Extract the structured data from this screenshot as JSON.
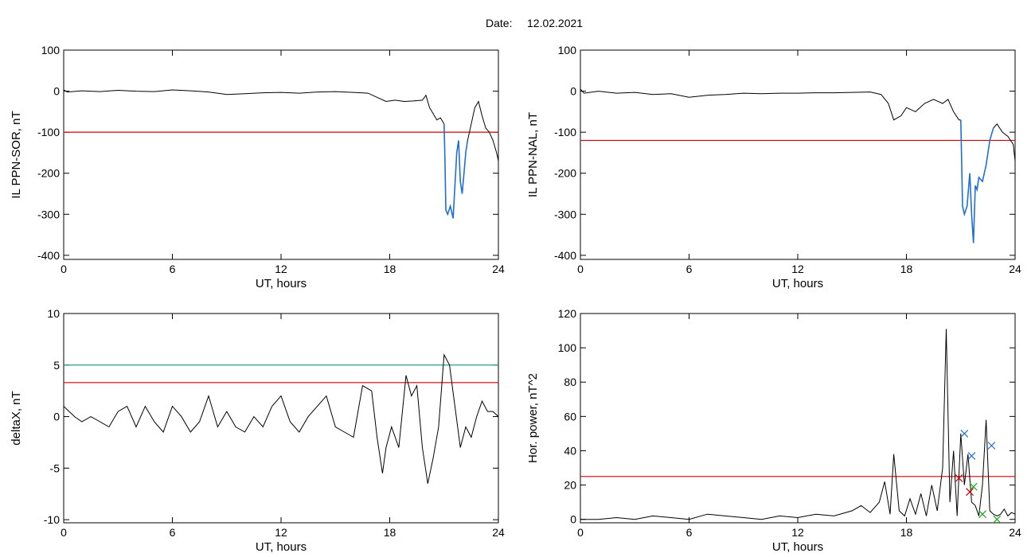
{
  "header": {
    "date_label": "Date:",
    "date_value": "12.02.2021"
  },
  "colors": {
    "trace": "#000000",
    "threshold": "#d40000",
    "highlight": "#1f6fd8",
    "threshold2": "#2a9d8f",
    "marker_blue": "#1f6fd8",
    "marker_red": "#d40000",
    "marker_green": "#1aa31a"
  },
  "chart_data": [
    {
      "type": "line",
      "ylabel": "IL PPN-SOR, nT",
      "xlabel": "UT, hours",
      "xlim": [
        0,
        24
      ],
      "ylim": [
        -410,
        100
      ],
      "xticks": [
        "0",
        "6",
        "12",
        "18",
        "24"
      ],
      "yticks": [
        "100",
        "0",
        "-100",
        "-200",
        "-300",
        "-400"
      ],
      "threshold": -100,
      "series": [
        {
          "x": [
            0,
            0.2,
            1,
            2,
            3,
            4,
            5,
            6,
            7,
            8,
            9,
            10,
            11,
            12,
            13,
            14,
            15,
            16,
            16.8,
            17.3,
            17.8,
            18.3,
            18.8,
            19.3,
            19.8,
            20.0,
            20.2,
            20.4,
            20.6,
            20.8,
            21.0
          ],
          "y": [
            3,
            -2,
            1,
            -1,
            2,
            0,
            -1,
            3,
            1,
            -2,
            -8,
            -6,
            -4,
            -3,
            -5,
            -2,
            -1,
            -3,
            -5,
            -15,
            -25,
            -22,
            -25,
            -24,
            -22,
            -10,
            -40,
            -55,
            -70,
            -65,
            -80
          ]
        },
        {
          "x": [
            21.0,
            21.05,
            21.1,
            21.2,
            21.35,
            21.5,
            21.6,
            21.7,
            21.8,
            21.9,
            22.0,
            22.1,
            22.2,
            22.3
          ],
          "y": [
            -80,
            -170,
            -290,
            -300,
            -280,
            -310,
            -230,
            -150,
            -120,
            -220,
            -250,
            -200,
            -150,
            -120
          ],
          "highlight": true
        },
        {
          "x": [
            22.3,
            22.5,
            22.7,
            22.9,
            23.1,
            23.3,
            23.5,
            23.7,
            23.9,
            24.0
          ],
          "y": [
            -120,
            -80,
            -40,
            -25,
            -60,
            -90,
            -100,
            -120,
            -150,
            -170
          ]
        }
      ]
    },
    {
      "type": "line",
      "ylabel": "IL PPN-NAL, nT",
      "xlabel": "UT, hours",
      "xlim": [
        0,
        24
      ],
      "ylim": [
        -410,
        100
      ],
      "xticks": [
        "0",
        "6",
        "12",
        "18",
        "24"
      ],
      "yticks": [
        "100",
        "0",
        "-100",
        "-200",
        "-300",
        "-400"
      ],
      "threshold": -120,
      "series": [
        {
          "x": [
            0,
            0.2,
            1,
            2,
            3,
            4,
            5,
            6,
            7,
            8,
            9,
            10,
            11,
            12,
            13,
            14,
            15,
            16,
            16.6,
            17.0,
            17.3,
            17.7,
            18.0,
            18.5,
            19.0,
            19.5,
            20.0,
            20.3,
            20.6,
            20.9,
            21.0
          ],
          "y": [
            5,
            -5,
            0,
            -5,
            -3,
            -8,
            -6,
            -15,
            -10,
            -8,
            -5,
            -6,
            -5,
            -5,
            -4,
            -4,
            -3,
            -2,
            -8,
            -30,
            -70,
            -60,
            -40,
            -50,
            -30,
            -20,
            -30,
            -20,
            -50,
            -70,
            -70
          ]
        },
        {
          "x": [
            21.0,
            21.1,
            21.2,
            21.35,
            21.5,
            21.6,
            21.7,
            21.8,
            21.9,
            22.0,
            22.2,
            22.4,
            22.6,
            22.8
          ],
          "y": [
            -70,
            -280,
            -300,
            -280,
            -200,
            -300,
            -370,
            -230,
            -240,
            -210,
            -220,
            -180,
            -120,
            -90
          ],
          "highlight": true
        },
        {
          "x": [
            22.8,
            23.0,
            23.3,
            23.6,
            23.9,
            24.0
          ],
          "y": [
            -90,
            -80,
            -100,
            -110,
            -130,
            -170
          ]
        }
      ]
    },
    {
      "type": "line",
      "ylabel": "deltaX, nT",
      "xlabel": "UT, hours",
      "xlim": [
        0,
        24
      ],
      "ylim": [
        -10.3,
        10
      ],
      "xticks": [
        "0",
        "6",
        "12",
        "18",
        "24"
      ],
      "yticks": [
        "10",
        "5",
        "0",
        "-5",
        "-10"
      ],
      "threshold": 3.3,
      "threshold2": 5,
      "series": [
        {
          "x": [
            0,
            0.3,
            0.6,
            1,
            1.5,
            2,
            2.5,
            3,
            3.5,
            4,
            4.5,
            5,
            5.5,
            6,
            6.5,
            7,
            7.5,
            8,
            8.5,
            9,
            9.5,
            10,
            10.5,
            11,
            11.5,
            12,
            12.5,
            13,
            13.5,
            14,
            14.5,
            15,
            15.5,
            16,
            16.5,
            17,
            17.3,
            17.6,
            17.8,
            18.1,
            18.5,
            18.9,
            19.2,
            19.5,
            19.8,
            20.1,
            20.4,
            20.7,
            21.0,
            21.3,
            21.6,
            21.9,
            22.2,
            22.5,
            22.8,
            23.1,
            23.4,
            23.7,
            24.0
          ],
          "y": [
            1,
            0.5,
            0,
            -0.5,
            0,
            -0.5,
            -1,
            0.5,
            1,
            -1,
            1,
            -0.5,
            -1.5,
            1,
            0,
            -1.5,
            -0.5,
            2,
            -1,
            0.5,
            -1,
            -1.5,
            0,
            -1,
            1,
            2,
            -0.5,
            -1.5,
            0,
            1,
            2,
            -1,
            -1.5,
            -2,
            3,
            2.5,
            -2,
            -5.5,
            -3,
            -1,
            -3,
            4,
            2,
            3,
            -3,
            -6.5,
            -4,
            -1,
            6,
            5,
            1,
            -3,
            -1,
            -2,
            0,
            1.5,
            0.5,
            0.5,
            0
          ]
        }
      ]
    },
    {
      "type": "line",
      "ylabel": "Hor. power, nT^2",
      "xlabel": "UT, hours",
      "xlim": [
        0,
        24
      ],
      "ylim": [
        -2,
        120
      ],
      "xticks": [
        "0",
        "6",
        "12",
        "18",
        "24"
      ],
      "yticks": [
        "120",
        "100",
        "80",
        "60",
        "40",
        "20",
        "0"
      ],
      "threshold": 25,
      "series": [
        {
          "x": [
            0,
            1,
            2,
            3,
            4,
            5,
            6,
            7,
            8,
            9,
            10,
            11,
            12,
            13,
            14,
            15,
            15.5,
            16,
            16.5,
            16.8,
            17.1,
            17.3,
            17.6,
            17.9,
            18.2,
            18.5,
            18.8,
            19.1,
            19.4,
            19.7,
            20.0,
            20.2,
            20.4,
            20.6,
            20.8,
            21.0,
            21.2,
            21.4,
            21.6,
            21.8,
            22.0,
            22.2,
            22.4,
            22.6,
            22.8,
            23.0,
            23.2,
            23.4,
            23.6,
            23.8,
            24.0
          ],
          "y": [
            0,
            0,
            1,
            0,
            2,
            1,
            0,
            3,
            2,
            1,
            0,
            2,
            1,
            3,
            2,
            5,
            8,
            4,
            10,
            22,
            3,
            38,
            5,
            2,
            12,
            3,
            15,
            2,
            20,
            5,
            30,
            111,
            10,
            40,
            2,
            50,
            20,
            38,
            10,
            8,
            2,
            20,
            58,
            5,
            3,
            2,
            3,
            6,
            2,
            4,
            3
          ]
        }
      ],
      "markers": [
        {
          "x": 21.2,
          "y": 50,
          "color": "blue"
        },
        {
          "x": 21.6,
          "y": 37,
          "color": "blue"
        },
        {
          "x": 22.7,
          "y": 43,
          "color": "blue"
        },
        {
          "x": 20.9,
          "y": 24,
          "color": "red"
        },
        {
          "x": 21.5,
          "y": 16,
          "color": "red"
        },
        {
          "x": 21.7,
          "y": 19,
          "color": "green"
        },
        {
          "x": 22.2,
          "y": 3,
          "color": "green"
        },
        {
          "x": 23.0,
          "y": 0,
          "color": "green"
        }
      ]
    }
  ]
}
